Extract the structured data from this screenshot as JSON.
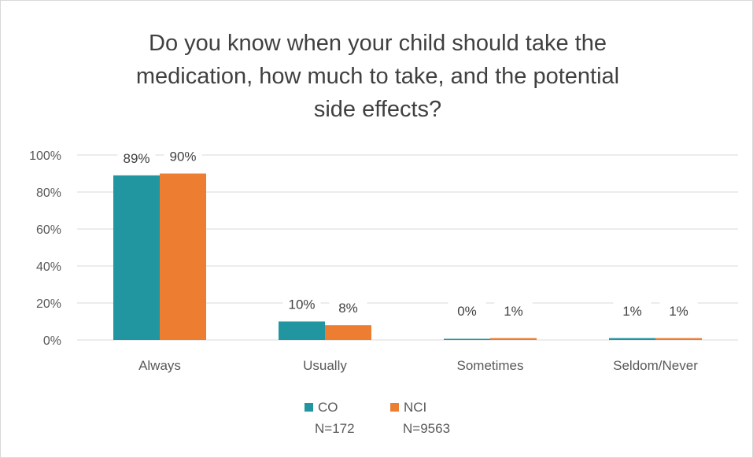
{
  "chart_data": {
    "type": "bar",
    "title_lines": [
      "Do you know when your child should take the",
      "medication, how much to take, and the potential",
      "side effects?"
    ],
    "categories": [
      "Always",
      "Usually",
      "Sometimes",
      "Seldom/Never"
    ],
    "series": [
      {
        "name": "CO",
        "n_label": "N=172",
        "color": "#2196a0",
        "values": [
          89,
          10,
          0,
          1
        ],
        "labels": [
          "89%",
          "10%",
          "0%",
          "1%"
        ]
      },
      {
        "name": "NCI",
        "n_label": "N=9563",
        "color": "#ed7d31",
        "values": [
          90,
          8,
          1,
          1
        ],
        "labels": [
          "90%",
          "8%",
          "1%",
          "1%"
        ]
      }
    ],
    "y_ticks": [
      "0%",
      "20%",
      "40%",
      "60%",
      "80%",
      "100%"
    ],
    "ylim": [
      0,
      100
    ],
    "grid": true,
    "legend_position": "bottom"
  }
}
